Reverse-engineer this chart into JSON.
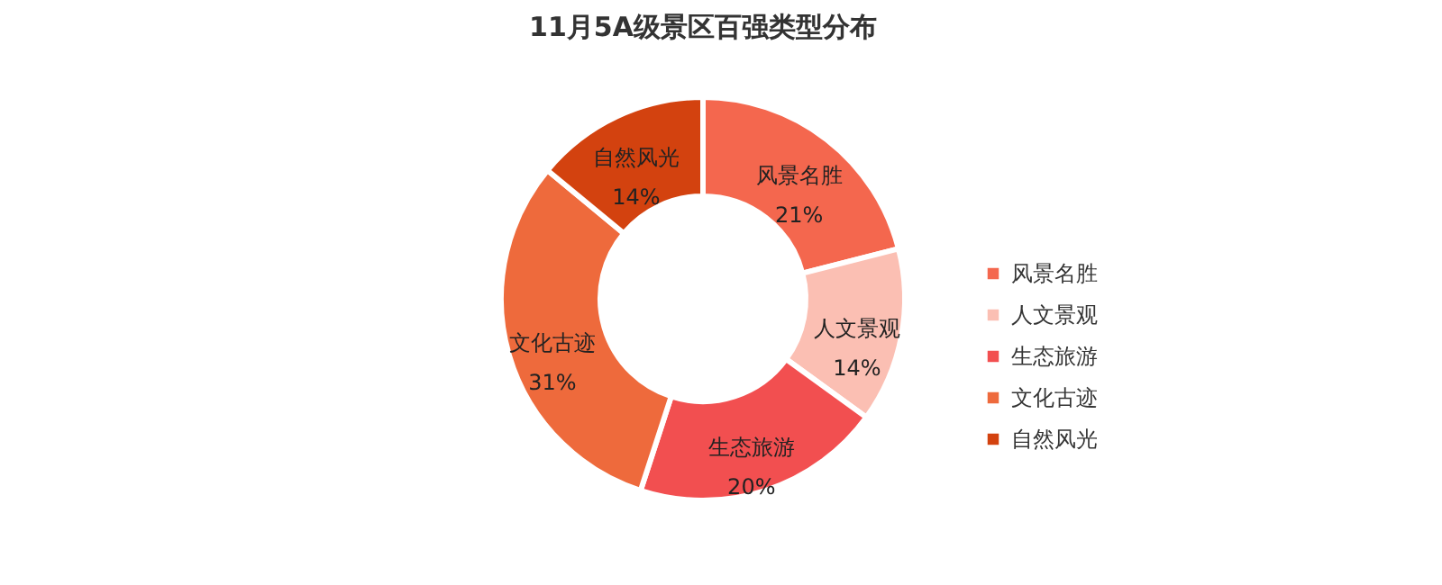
{
  "chart_data": {
    "type": "donut",
    "title": "11月5A级景区百强类型分布",
    "categories": [
      "风景名胜",
      "人文景观",
      "生态旅游",
      "文化古迹",
      "自然风光"
    ],
    "values": [
      21,
      14,
      20,
      31,
      14
    ],
    "colors": [
      "#f4674e",
      "#fbbfb3",
      "#f24f50",
      "#ee6a3c",
      "#d3420f"
    ],
    "value_labels": [
      "21%",
      "14%",
      "20%",
      "31%",
      "14%"
    ],
    "legend": "right"
  }
}
